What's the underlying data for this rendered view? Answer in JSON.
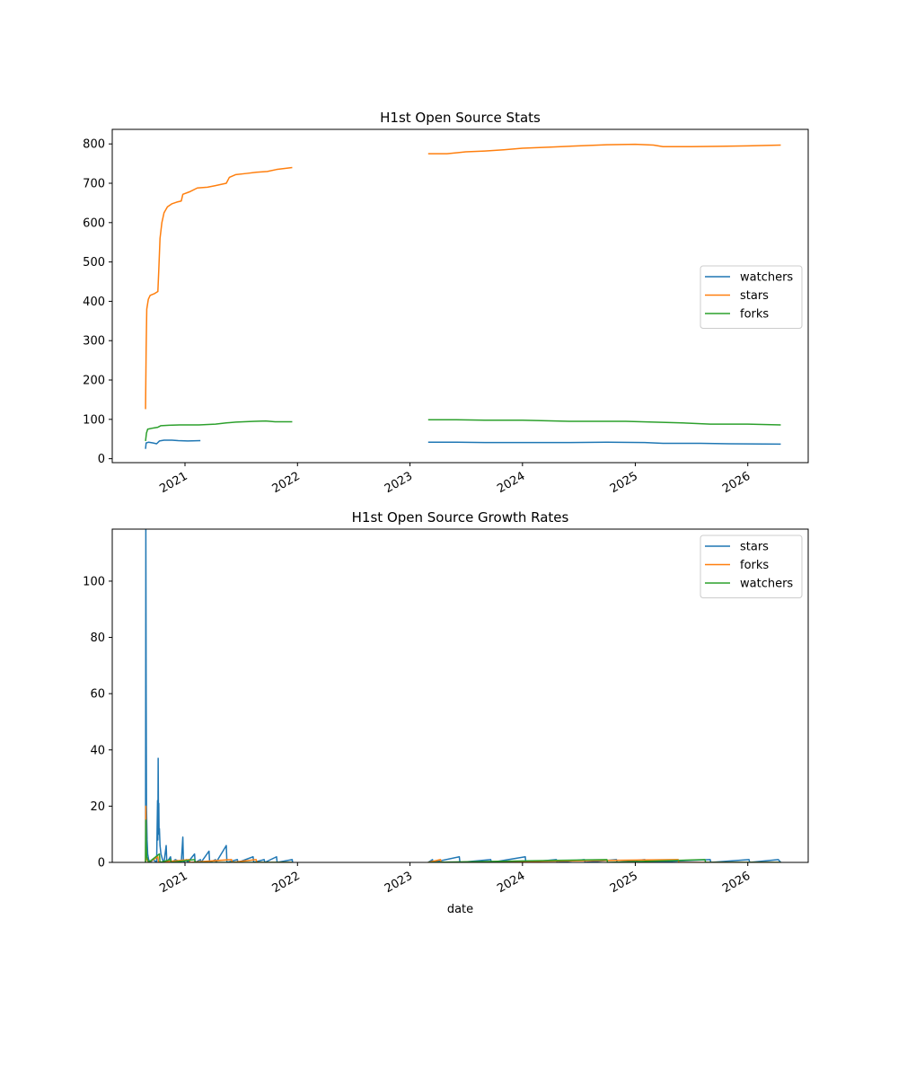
{
  "figure": {
    "background": "#ffffff"
  },
  "chart_data": [
    {
      "type": "line",
      "title": "H1st Open Source Stats",
      "xlabel": "",
      "ylabel": "",
      "xlim": [
        "2020-05-10",
        "2026-07-16"
      ],
      "ylim": [
        -10,
        837
      ],
      "x_ticks": [
        "2021",
        "2022",
        "2023",
        "2024",
        "2025",
        "2026"
      ],
      "y_ticks": [
        0,
        100,
        200,
        300,
        400,
        500,
        600,
        700,
        800
      ],
      "grid": false,
      "legend": {
        "placement": "center-right",
        "entries": [
          "watchers",
          "stars",
          "forks"
        ]
      },
      "series": [
        {
          "name": "watchers",
          "color": "#1f77b4",
          "segments": [
            [
              [
                "2020-08-26",
                25
              ],
              [
                "2020-08-28",
                40
              ],
              [
                "2020-09-05",
                42
              ],
              [
                "2020-09-20",
                40
              ],
              [
                "2020-10-01",
                38
              ],
              [
                "2020-10-10",
                45
              ],
              [
                "2020-10-25",
                47
              ],
              [
                "2020-11-20",
                47
              ],
              [
                "2020-12-10",
                46
              ],
              [
                "2021-01-10",
                45
              ],
              [
                "2021-02-20",
                46
              ]
            ],
            [
              [
                "2023-03-01",
                42
              ],
              [
                "2023-06-01",
                42
              ],
              [
                "2023-09-01",
                41
              ],
              [
                "2024-01-01",
                41
              ],
              [
                "2024-06-01",
                41
              ],
              [
                "2024-10-01",
                42
              ],
              [
                "2025-02-01",
                41
              ],
              [
                "2025-04-01",
                39
              ],
              [
                "2025-08-01",
                39
              ],
              [
                "2025-11-01",
                38
              ],
              [
                "2026-04-18",
                37
              ]
            ]
          ]
        },
        {
          "name": "stars",
          "color": "#ff7f0e",
          "segments": [
            [
              [
                "2020-08-26",
                126
              ],
              [
                "2020-08-28",
                280
              ],
              [
                "2020-08-30",
                380
              ],
              [
                "2020-09-04",
                405
              ],
              [
                "2020-09-10",
                415
              ],
              [
                "2020-09-25",
                420
              ],
              [
                "2020-10-05",
                425
              ],
              [
                "2020-10-08",
                480
              ],
              [
                "2020-10-12",
                560
              ],
              [
                "2020-10-18",
                600
              ],
              [
                "2020-10-25",
                625
              ],
              [
                "2020-11-05",
                640
              ],
              [
                "2020-11-20",
                648
              ],
              [
                "2020-12-05",
                652
              ],
              [
                "2020-12-20",
                655
              ],
              [
                "2020-12-25",
                672
              ],
              [
                "2021-01-15",
                678
              ],
              [
                "2021-02-10",
                688
              ],
              [
                "2021-03-15",
                690
              ],
              [
                "2021-04-10",
                694
              ],
              [
                "2021-05-15",
                700
              ],
              [
                "2021-05-25",
                715
              ],
              [
                "2021-06-15",
                722
              ],
              [
                "2021-07-20",
                725
              ],
              [
                "2021-08-20",
                728
              ],
              [
                "2021-09-25",
                730
              ],
              [
                "2021-10-25",
                735
              ],
              [
                "2021-12-15",
                740
              ]
            ],
            [
              [
                "2023-03-01",
                775
              ],
              [
                "2023-05-01",
                775
              ],
              [
                "2023-07-01",
                780
              ],
              [
                "2023-09-01",
                782
              ],
              [
                "2023-11-01",
                785
              ],
              [
                "2024-01-01",
                789
              ],
              [
                "2024-04-01",
                792
              ],
              [
                "2024-07-01",
                795
              ],
              [
                "2024-10-01",
                798
              ],
              [
                "2025-01-01",
                799
              ],
              [
                "2025-03-01",
                797
              ],
              [
                "2025-04-01",
                793
              ],
              [
                "2025-07-01",
                793
              ],
              [
                "2025-10-01",
                794
              ],
              [
                "2026-01-01",
                795
              ],
              [
                "2026-04-18",
                797
              ]
            ]
          ]
        },
        {
          "name": "forks",
          "color": "#2ca02c",
          "segments": [
            [
              [
                "2020-08-26",
                45
              ],
              [
                "2020-08-29",
                65
              ],
              [
                "2020-09-02",
                75
              ],
              [
                "2020-09-20",
                78
              ],
              [
                "2020-10-05",
                80
              ],
              [
                "2020-10-15",
                84
              ],
              [
                "2020-11-10",
                85
              ],
              [
                "2020-12-15",
                86
              ],
              [
                "2021-02-15",
                86
              ],
              [
                "2021-04-10",
                88
              ],
              [
                "2021-05-15",
                91
              ],
              [
                "2021-06-15",
                93
              ],
              [
                "2021-08-15",
                95
              ],
              [
                "2021-09-20",
                96
              ],
              [
                "2021-10-20",
                94
              ],
              [
                "2021-12-15",
                94
              ]
            ],
            [
              [
                "2023-03-01",
                99
              ],
              [
                "2023-06-01",
                99
              ],
              [
                "2023-09-01",
                98
              ],
              [
                "2024-01-01",
                98
              ],
              [
                "2024-06-01",
                95
              ],
              [
                "2024-12-01",
                95
              ],
              [
                "2025-06-01",
                91
              ],
              [
                "2025-09-01",
                88
              ],
              [
                "2026-01-01",
                88
              ],
              [
                "2026-04-18",
                86
              ]
            ]
          ]
        }
      ]
    },
    {
      "type": "line",
      "title": "H1st Open Source Growth Rates",
      "xlabel": "date",
      "ylabel": "",
      "xlim": [
        "2020-05-10",
        "2026-07-16"
      ],
      "ylim": [
        0,
        118.5
      ],
      "x_ticks": [
        "2021",
        "2022",
        "2023",
        "2024",
        "2025",
        "2026"
      ],
      "y_ticks": [
        0,
        20,
        40,
        60,
        80,
        100
      ],
      "grid": false,
      "legend": {
        "placement": "top-right",
        "entries": [
          "stars",
          "forks",
          "watchers"
        ]
      },
      "series": [
        {
          "name": "stars",
          "color": "#1f77b4",
          "segments": [
            [
              [
                "2020-08-26",
                0
              ],
              [
                "2020-08-27",
                118.5
              ],
              [
                "2020-08-28",
                60
              ],
              [
                "2020-08-29",
                20
              ],
              [
                "2020-08-31",
                8
              ],
              [
                "2020-09-02",
                3
              ],
              [
                "2020-09-05",
                1
              ],
              [
                "2020-09-10",
                0
              ],
              [
                "2020-09-20",
                1
              ],
              [
                "2020-10-01",
                0
              ],
              [
                "2020-10-04",
                22
              ],
              [
                "2020-10-05",
                8
              ],
              [
                "2020-10-06",
                37
              ],
              [
                "2020-10-07",
                15
              ],
              [
                "2020-10-08",
                21
              ],
              [
                "2020-10-09",
                10
              ],
              [
                "2020-10-10",
                12
              ],
              [
                "2020-10-12",
                6
              ],
              [
                "2020-10-15",
                3
              ],
              [
                "2020-10-20",
                1
              ],
              [
                "2020-10-25",
                0
              ],
              [
                "2020-11-01",
                6
              ],
              [
                "2020-11-03",
                0
              ],
              [
                "2020-11-15",
                2
              ],
              [
                "2020-11-18",
                0
              ],
              [
                "2020-12-01",
                1
              ],
              [
                "2020-12-20",
                0
              ],
              [
                "2020-12-25",
                9
              ],
              [
                "2020-12-27",
                0
              ],
              [
                "2021-01-05",
                1
              ],
              [
                "2021-01-10",
                0
              ],
              [
                "2021-02-01",
                3
              ],
              [
                "2021-02-03",
                0
              ],
              [
                "2021-02-20",
                1
              ],
              [
                "2021-02-22",
                0
              ],
              [
                "2021-03-20",
                4
              ],
              [
                "2021-03-22",
                0
              ],
              [
                "2021-04-10",
                1
              ],
              [
                "2021-04-12",
                0
              ],
              [
                "2021-05-15",
                6
              ],
              [
                "2021-05-17",
                0
              ],
              [
                "2021-06-20",
                1
              ],
              [
                "2021-06-22",
                0
              ],
              [
                "2021-08-10",
                2
              ],
              [
                "2021-08-12",
                0
              ],
              [
                "2021-09-15",
                1
              ],
              [
                "2021-09-17",
                0
              ],
              [
                "2021-10-25",
                2
              ],
              [
                "2021-10-27",
                0
              ],
              [
                "2021-12-15",
                1
              ],
              [
                "2021-12-16",
                0
              ]
            ],
            [
              [
                "2023-03-01",
                0
              ],
              [
                "2023-03-15",
                1
              ],
              [
                "2023-03-17",
                0
              ],
              [
                "2023-06-10",
                2
              ],
              [
                "2023-06-12",
                0
              ],
              [
                "2023-09-20",
                1
              ],
              [
                "2023-09-22",
                0
              ],
              [
                "2024-01-10",
                2
              ],
              [
                "2024-01-12",
                0
              ],
              [
                "2024-04-20",
                1
              ],
              [
                "2024-04-22",
                0
              ],
              [
                "2024-07-20",
                1
              ],
              [
                "2024-07-22",
                0
              ],
              [
                "2024-11-01",
                1
              ],
              [
                "2024-11-03",
                0
              ],
              [
                "2025-02-01",
                1
              ],
              [
                "2025-02-03",
                0
              ],
              [
                "2025-09-01",
                1
              ],
              [
                "2025-09-03",
                0
              ],
              [
                "2026-01-05",
                1
              ],
              [
                "2026-01-07",
                0
              ],
              [
                "2026-04-10",
                1
              ],
              [
                "2026-04-18",
                0
              ]
            ]
          ]
        },
        {
          "name": "forks",
          "color": "#ff7f0e",
          "segments": [
            [
              [
                "2020-08-26",
                0
              ],
              [
                "2020-08-27",
                20
              ],
              [
                "2020-08-28",
                5
              ],
              [
                "2020-08-30",
                1
              ],
              [
                "2020-09-05",
                0
              ],
              [
                "2020-10-05",
                2
              ],
              [
                "2020-10-07",
                0
              ],
              [
                "2021-01-15",
                1
              ],
              [
                "2021-01-17",
                0
              ],
              [
                "2021-06-01",
                1
              ],
              [
                "2021-06-03",
                0
              ],
              [
                "2021-08-20",
                1
              ],
              [
                "2021-08-22",
                0
              ],
              [
                "2021-12-15",
                0
              ]
            ],
            [
              [
                "2023-03-01",
                0
              ],
              [
                "2023-04-10",
                1
              ],
              [
                "2023-04-12",
                0
              ],
              [
                "2025-05-20",
                1
              ],
              [
                "2025-05-22",
                0
              ],
              [
                "2026-04-18",
                0
              ]
            ]
          ]
        },
        {
          "name": "watchers",
          "color": "#2ca02c",
          "segments": [
            [
              [
                "2020-08-26",
                0
              ],
              [
                "2020-08-27",
                15
              ],
              [
                "2020-08-28",
                6
              ],
              [
                "2020-08-30",
                2
              ],
              [
                "2020-09-05",
                0
              ],
              [
                "2020-10-10",
                3
              ],
              [
                "2020-10-12",
                0
              ],
              [
                "2020-11-15",
                1
              ],
              [
                "2020-11-17",
                0
              ],
              [
                "2021-02-01",
                1
              ],
              [
                "2021-02-03",
                0
              ],
              [
                "2021-12-15",
                0
              ]
            ],
            [
              [
                "2023-03-01",
                0
              ],
              [
                "2024-10-01",
                1
              ],
              [
                "2024-10-03",
                0
              ],
              [
                "2025-08-15",
                1
              ],
              [
                "2025-08-17",
                0
              ],
              [
                "2026-04-18",
                0
              ]
            ]
          ]
        }
      ]
    }
  ]
}
